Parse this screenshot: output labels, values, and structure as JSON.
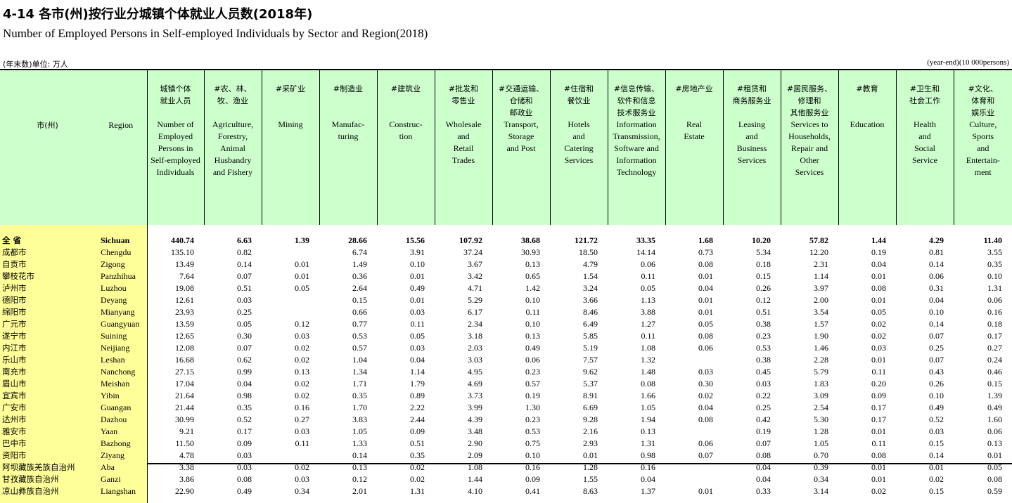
{
  "title_cn": "4-14  各市(州)按行业分城镇个体就业人员数(2018年)",
  "title_en": "Number of Employed Persons in Self-employed Individuals by Sector and Region(2018)",
  "unit_left": "(年末数)单位: 万人",
  "unit_right": "(year-end)(10 000persons)",
  "headers": {
    "city_cn": "市(州)",
    "region_en": "Region",
    "columns": [
      {
        "cn": [
          "城镇个体",
          "就业人员"
        ],
        "en": [
          "Number of",
          "Employed",
          "Persons in",
          "Self-employed",
          "Individuals"
        ]
      },
      {
        "cn": [
          "#农、林、",
          "牧、渔业"
        ],
        "en": [
          "Agriculture,",
          "Forestry,",
          "Animal",
          "Husbandry",
          "and Fishery"
        ]
      },
      {
        "cn": [
          "#采矿业"
        ],
        "en": [
          "Mining"
        ]
      },
      {
        "cn": [
          "#制造业"
        ],
        "en": [
          "Manufac-",
          "turing"
        ]
      },
      {
        "cn": [
          "#建筑业"
        ],
        "en": [
          "Construc-",
          "tion"
        ]
      },
      {
        "cn": [
          "#批发和",
          "零售业"
        ],
        "en": [
          "Wholesale",
          "and",
          "Retail",
          "Trades"
        ]
      },
      {
        "cn": [
          "#交通运输、",
          "仓储和",
          "邮政业"
        ],
        "en": [
          "Transport,",
          "Storage",
          "and Post"
        ]
      },
      {
        "cn": [
          "#住宿和",
          "餐饮业"
        ],
        "en": [
          "Hotels",
          "and",
          "Catering",
          "Services"
        ]
      },
      {
        "cn": [
          "#信息传输、",
          "软件和信息",
          "技术服务业"
        ],
        "en": [
          "Information",
          "Transmission,",
          "Software and",
          "Information",
          "Technology"
        ]
      },
      {
        "cn": [
          "#房地产业"
        ],
        "en": [
          "Real",
          "Estate"
        ]
      },
      {
        "cn": [
          "#租赁和",
          "商务服务业"
        ],
        "en": [
          "Leasing",
          "and",
          "Business",
          "Services"
        ]
      },
      {
        "cn": [
          "#居民服务、",
          "修理和",
          "其他服务业"
        ],
        "en": [
          "Services to",
          "Households,",
          "Repair and",
          "Other",
          "Services"
        ]
      },
      {
        "cn": [
          "#教育"
        ],
        "en": [
          "Education"
        ]
      },
      {
        "cn": [
          "#卫生和",
          "社会工作"
        ],
        "en": [
          "Health",
          "and",
          "Social",
          "Service"
        ]
      },
      {
        "cn": [
          "#文化、",
          "体育和",
          "娱乐业"
        ],
        "en": [
          "Culture,",
          "Sports",
          "and",
          "Entertain-",
          "ment"
        ]
      }
    ]
  },
  "rows": [
    {
      "cn": "全  省",
      "en": "Sichuan",
      "total": true,
      "v": [
        "440.74",
        "6.63",
        "1.39",
        "28.66",
        "15.56",
        "107.92",
        "38.68",
        "121.72",
        "33.35",
        "1.68",
        "10.20",
        "57.82",
        "1.44",
        "4.29",
        "11.40"
      ]
    },
    {
      "cn": "成都市",
      "en": "Chengdu",
      "v": [
        "135.10",
        "0.82",
        "",
        "6.74",
        "3.91",
        "37.24",
        "30.93",
        "18.50",
        "14.14",
        "0.73",
        "5.34",
        "12.20",
        "0.19",
        "0.81",
        "3.55"
      ]
    },
    {
      "cn": "自贡市",
      "en": "Zigong",
      "v": [
        "13.49",
        "0.14",
        "0.01",
        "1.49",
        "0.10",
        "3.67",
        "0.13",
        "4.79",
        "0.06",
        "0.08",
        "0.18",
        "2.31",
        "0.04",
        "0.14",
        "0.35"
      ]
    },
    {
      "cn": "攀枝花市",
      "en": "Panzhihua",
      "v": [
        "7.64",
        "0.07",
        "0.01",
        "0.36",
        "0.01",
        "3.42",
        "0.65",
        "1.54",
        "0.11",
        "0.01",
        "0.15",
        "1.14",
        "0.01",
        "0.06",
        "0.10"
      ]
    },
    {
      "cn": "泸州市",
      "en": "Luzhou",
      "v": [
        "19.08",
        "0.51",
        "0.05",
        "2.64",
        "0.49",
        "4.71",
        "1.42",
        "3.24",
        "0.05",
        "0.04",
        "0.26",
        "3.97",
        "0.08",
        "0.31",
        "1.31"
      ]
    },
    {
      "cn": "德阳市",
      "en": "Deyang",
      "v": [
        "12.61",
        "0.03",
        "",
        "0.15",
        "0.01",
        "5.29",
        "0.10",
        "3.66",
        "1.13",
        "0.01",
        "0.12",
        "2.00",
        "0.01",
        "0.04",
        "0.06"
      ]
    },
    {
      "cn": "绵阳市",
      "en": "Mianyang",
      "v": [
        "23.93",
        "0.25",
        "",
        "0.66",
        "0.03",
        "6.17",
        "0.11",
        "8.46",
        "3.88",
        "0.01",
        "0.51",
        "3.54",
        "0.05",
        "0.10",
        "0.16"
      ]
    },
    {
      "cn": "广元市",
      "en": "Guangyuan",
      "v": [
        "13.59",
        "0.05",
        "0.12",
        "0.77",
        "0.11",
        "2.34",
        "0.10",
        "6.49",
        "1.27",
        "0.05",
        "0.38",
        "1.57",
        "0.02",
        "0.14",
        "0.18"
      ]
    },
    {
      "cn": "遂宁市",
      "en": "Suining",
      "v": [
        "12.65",
        "0.30",
        "0.03",
        "0.53",
        "0.05",
        "3.18",
        "0.13",
        "5.85",
        "0.11",
        "0.08",
        "0.23",
        "1.90",
        "0.02",
        "0.07",
        "0.17"
      ]
    },
    {
      "cn": "内江市",
      "en": "Neijiang",
      "v": [
        "12.08",
        "0.07",
        "0.02",
        "0.57",
        "0.03",
        "2.03",
        "0.49",
        "5.19",
        "1.08",
        "0.06",
        "0.53",
        "1.46",
        "0.03",
        "0.25",
        "0.27"
      ]
    },
    {
      "cn": "乐山市",
      "en": "Leshan",
      "v": [
        "16.68",
        "0.62",
        "0.02",
        "1.04",
        "0.04",
        "3.03",
        "0.06",
        "7.57",
        "1.32",
        "",
        "0.38",
        "2.28",
        "0.01",
        "0.07",
        "0.24"
      ]
    },
    {
      "cn": "南充市",
      "en": "Nanchong",
      "v": [
        "27.15",
        "0.99",
        "0.13",
        "1.34",
        "1.14",
        "4.95",
        "0.23",
        "9.62",
        "1.48",
        "0.03",
        "0.45",
        "5.79",
        "0.11",
        "0.43",
        "0.46"
      ]
    },
    {
      "cn": "眉山市",
      "en": "Meishan",
      "v": [
        "17.04",
        "0.04",
        "0.02",
        "1.71",
        "1.79",
        "4.69",
        "0.57",
        "5.37",
        "0.08",
        "0.30",
        "0.03",
        "1.83",
        "0.20",
        "0.26",
        "0.15"
      ]
    },
    {
      "cn": "宜宾市",
      "en": "Yibin",
      "v": [
        "21.64",
        "0.98",
        "0.02",
        "0.35",
        "0.89",
        "3.73",
        "0.19",
        "8.91",
        "1.66",
        "0.02",
        "0.22",
        "3.09",
        "0.09",
        "0.10",
        "1.39"
      ]
    },
    {
      "cn": "广安市",
      "en": "Guangan",
      "v": [
        "21.44",
        "0.35",
        "0.16",
        "1.70",
        "2.22",
        "3.99",
        "1.30",
        "6.69",
        "1.05",
        "0.04",
        "0.25",
        "2.54",
        "0.17",
        "0.49",
        "0.49"
      ]
    },
    {
      "cn": "达州市",
      "en": "Dazhou",
      "v": [
        "30.99",
        "0.52",
        "0.27",
        "3.83",
        "2.44",
        "4.39",
        "0.23",
        "9.28",
        "1.94",
        "0.08",
        "0.42",
        "5.30",
        "0.17",
        "0.52",
        "1.60"
      ]
    },
    {
      "cn": "雅安市",
      "en": "Yaan",
      "v": [
        "9.21",
        "0.17",
        "0.03",
        "1.05",
        "0.09",
        "3.48",
        "0.53",
        "2.16",
        "0.13",
        "",
        "0.19",
        "1.28",
        "0.01",
        "0.03",
        "0.06"
      ]
    },
    {
      "cn": "巴中市",
      "en": "Bazhong",
      "v": [
        "11.50",
        "0.09",
        "0.11",
        "1.33",
        "0.51",
        "2.90",
        "0.75",
        "2.93",
        "1.31",
        "0.06",
        "0.07",
        "1.05",
        "0.11",
        "0.15",
        "0.13"
      ]
    },
    {
      "cn": "资阳市",
      "en": "Ziyang",
      "v": [
        "4.78",
        "0.03",
        "",
        "0.14",
        "0.35",
        "2.09",
        "0.10",
        "0.01",
        "0.98",
        "0.07",
        "0.08",
        "0.70",
        "0.08",
        "0.14",
        "0.01"
      ]
    },
    {
      "cn": "阿坝藏族羌族自治州",
      "en": "Aba",
      "v": [
        "3.38",
        "0.03",
        "0.02",
        "0.13",
        "0.02",
        "1.08",
        "0.16",
        "1.28",
        "0.16",
        "",
        "0.04",
        "0.39",
        "0.01",
        "0.01",
        "0.05"
      ]
    },
    {
      "cn": "甘孜藏族自治州",
      "en": "Ganzi",
      "v": [
        "3.86",
        "0.08",
        "0.03",
        "0.12",
        "0.02",
        "1.44",
        "0.09",
        "1.55",
        "0.04",
        "",
        "0.04",
        "0.34",
        "0.01",
        "0.02",
        "0.08"
      ]
    },
    {
      "cn": "凉山彝族自治州",
      "en": "Liangshan",
      "v": [
        "22.90",
        "0.49",
        "0.34",
        "2.01",
        "1.31",
        "4.10",
        "0.41",
        "8.63",
        "1.37",
        "0.01",
        "0.33",
        "3.14",
        "0.02",
        "0.15",
        "0.59"
      ]
    }
  ]
}
